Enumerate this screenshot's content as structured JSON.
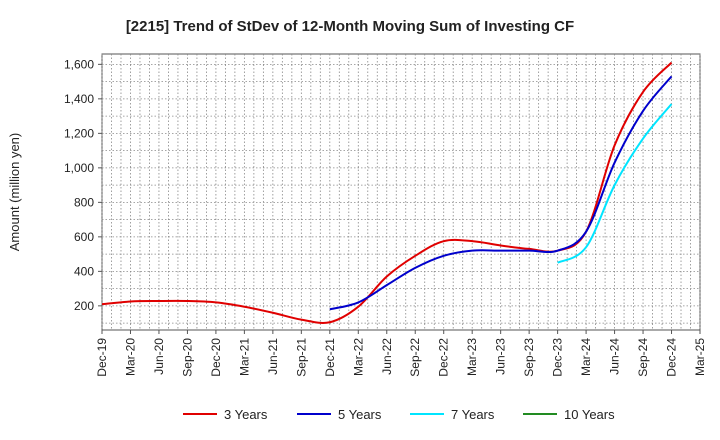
{
  "chart_data": {
    "type": "line",
    "title": "[2215]  Trend of StDev of 12-Month Moving Sum of Investing CF",
    "xlabel": "",
    "ylabel": "Amount (million yen)",
    "ylim": [
      60,
      1660
    ],
    "yticks": [
      200,
      400,
      600,
      800,
      "1,000",
      "1,200",
      "1,400",
      "1,600"
    ],
    "ytick_values": [
      200,
      400,
      600,
      800,
      1000,
      1200,
      1400,
      1600
    ],
    "categories": [
      "Dec-19",
      "Mar-20",
      "Jun-20",
      "Sep-20",
      "Dec-20",
      "Mar-21",
      "Jun-21",
      "Sep-21",
      "Dec-21",
      "Mar-22",
      "Jun-22",
      "Sep-22",
      "Dec-22",
      "Mar-23",
      "Jun-23",
      "Sep-23",
      "Dec-23",
      "Mar-24",
      "Jun-24",
      "Sep-24",
      "Dec-24",
      "Mar-25"
    ],
    "grid": true,
    "legend_position": "bottom",
    "series": [
      {
        "name": "3 Years",
        "color": "#e00000",
        "values": [
          210,
          225,
          228,
          228,
          220,
          195,
          160,
          120,
          105,
          195,
          370,
          490,
          575,
          575,
          550,
          530,
          520,
          630,
          1130,
          1440,
          1610,
          null
        ]
      },
      {
        "name": "5 Years",
        "color": "#0000cc",
        "values": [
          null,
          null,
          null,
          null,
          null,
          null,
          null,
          null,
          180,
          220,
          320,
          420,
          490,
          520,
          520,
          520,
          520,
          630,
          1030,
          1330,
          1530,
          null
        ]
      },
      {
        "name": "7 Years",
        "color": "#00e5ff",
        "values": [
          null,
          null,
          null,
          null,
          null,
          null,
          null,
          null,
          null,
          null,
          null,
          null,
          null,
          null,
          null,
          null,
          450,
          540,
          900,
          1170,
          1370,
          null
        ]
      },
      {
        "name": "10 Years",
        "color": "#228b22",
        "values": [
          null,
          null,
          null,
          null,
          null,
          null,
          null,
          null,
          null,
          null,
          null,
          null,
          null,
          null,
          null,
          null,
          null,
          null,
          null,
          null,
          null,
          null
        ]
      }
    ]
  }
}
